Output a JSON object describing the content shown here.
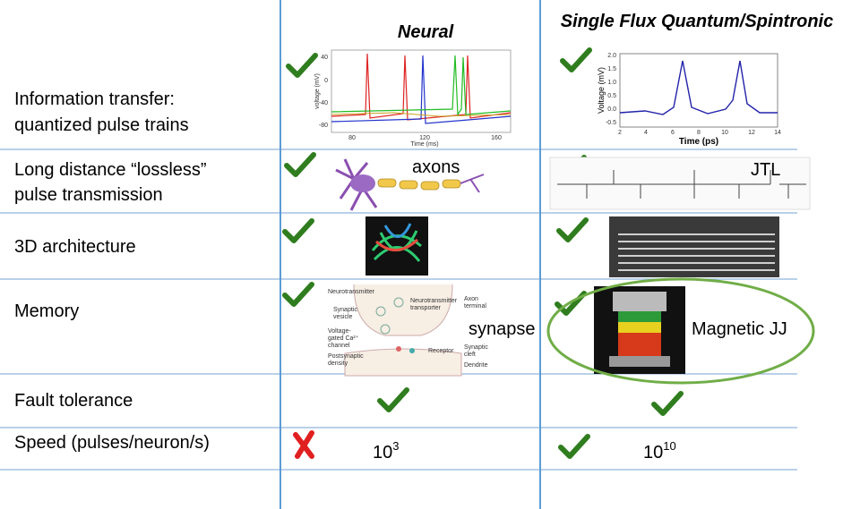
{
  "header": {
    "columns": [
      "Neural",
      "Single Flux Quantum/Spintronic"
    ]
  },
  "rows": [
    {
      "label": [
        "Information transfer:",
        "quantized pulse trains"
      ]
    },
    {
      "label": [
        "Long distance “lossless”",
        "pulse transmission"
      ]
    },
    {
      "label": [
        "3D architecture"
      ]
    },
    {
      "label": [
        "Memory"
      ]
    },
    {
      "label": [
        "Fault tolerance"
      ]
    },
    {
      "label": [
        "Speed (pulses/neuron/s)"
      ]
    }
  ],
  "cells": {
    "axons": "axons",
    "jtl": "JTL",
    "synapse": "synapse",
    "magnetic_jj": "Magnetic JJ"
  },
  "speed": {
    "neural": {
      "base": "10",
      "exp": "3"
    },
    "spintronic": {
      "base": "10",
      "exp": "10"
    }
  },
  "neural_plot": {
    "xlabel": "Time (ms)",
    "ylabel": "voltage (mV)",
    "xticks": [
      "80",
      "120",
      "160"
    ],
    "yticks": [
      "40",
      "0",
      "-40",
      "-80"
    ]
  },
  "sfq_plot": {
    "xlabel": "Time (ps)",
    "ylabel": "Voltage (mV)",
    "xticks": [
      "2",
      "4",
      "6",
      "8",
      "10",
      "12",
      "14"
    ],
    "yticks": [
      "2.0",
      "1.5",
      "1.0",
      "0.5",
      "0.0",
      "-0.5"
    ]
  },
  "synapse_labels": [
    "Neurotransmitter",
    "Synaptic",
    "vesicle",
    "Voltage-",
    "gated Ca²⁺",
    "channel",
    "Postsynaptic",
    "density",
    "Neurotransmitter",
    "transporter",
    "Axon",
    "terminal",
    "Receptor",
    "Synaptic",
    "cleft",
    "Dendrite"
  ]
}
